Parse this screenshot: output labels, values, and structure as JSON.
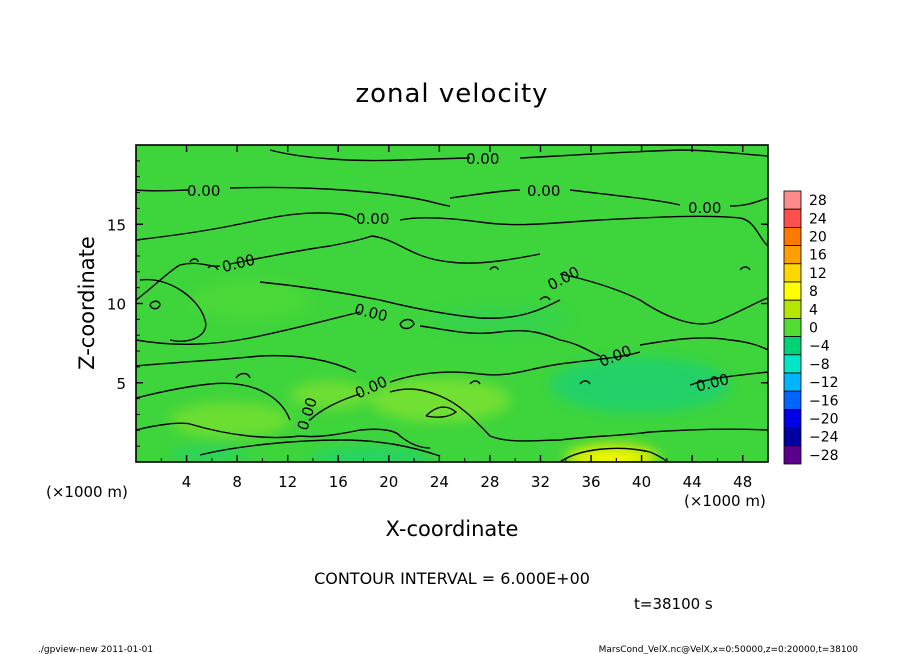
{
  "chart_data": {
    "type": "heatmap",
    "title": "zonal velocity",
    "xlabel": "X-coordinate",
    "ylabel": "Z-coordinate",
    "x_units": "(×1000 m)",
    "y_units": "(×1000 m)",
    "xlim": [
      0,
      50
    ],
    "ylim": [
      0,
      20
    ],
    "x_ticks": [
      "4",
      "8",
      "12",
      "16",
      "20",
      "24",
      "28",
      "32",
      "36",
      "40",
      "44",
      "48"
    ],
    "y_ticks": [
      "5",
      "10",
      "15"
    ],
    "colorbar": {
      "levels": [
        "28",
        "24",
        "20",
        "16",
        "12",
        "8",
        "4",
        "0",
        "−4",
        "−8",
        "−12",
        "−16",
        "−20",
        "−24",
        "−28"
      ],
      "colors": [
        "#ff8c8c",
        "#ff5050",
        "#ff7800",
        "#ffa000",
        "#ffd700",
        "#ffff00",
        "#b4e600",
        "#50dc32",
        "#00d278",
        "#00e6c8",
        "#00b4ff",
        "#0064ff",
        "#0000e6",
        "#0000a0",
        "#5a008c"
      ]
    },
    "contour_label": "0.00",
    "contour_interval_text": "CONTOUR INTERVAL = 6.000E+00",
    "time_text": "t=38100 s"
  },
  "footer": {
    "left": "./gpview-new  2011-01-01",
    "right": "MarsCond_VelX.nc@VelX,x=0:50000,z=0:20000,t=38100"
  }
}
